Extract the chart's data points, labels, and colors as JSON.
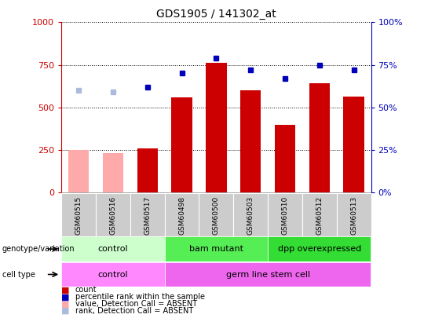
{
  "title": "GDS1905 / 141302_at",
  "samples": [
    "GSM60515",
    "GSM60516",
    "GSM60517",
    "GSM60498",
    "GSM60500",
    "GSM60503",
    "GSM60510",
    "GSM60512",
    "GSM60513"
  ],
  "count_values": [
    250,
    230,
    260,
    560,
    760,
    600,
    395,
    640,
    565
  ],
  "count_absent": [
    true,
    true,
    false,
    false,
    false,
    false,
    false,
    false,
    false
  ],
  "rank_values": [
    60,
    59,
    62,
    70,
    79,
    72,
    67,
    75,
    72
  ],
  "rank_absent": [
    true,
    true,
    false,
    false,
    false,
    false,
    false,
    false,
    false
  ],
  "ylim_left": [
    0,
    1000
  ],
  "ylim_right": [
    0,
    100
  ],
  "yticks_left": [
    0,
    250,
    500,
    750,
    1000
  ],
  "yticks_right": [
    0,
    25,
    50,
    75,
    100
  ],
  "genotype_groups": [
    {
      "label": "control",
      "start": 0,
      "end": 3,
      "color": "#ccffcc"
    },
    {
      "label": "bam mutant",
      "start": 3,
      "end": 6,
      "color": "#55ee55"
    },
    {
      "label": "dpp overexpressed",
      "start": 6,
      "end": 9,
      "color": "#33dd33"
    }
  ],
  "cell_type_groups": [
    {
      "label": "control",
      "start": 0,
      "end": 3,
      "color": "#ff88ff"
    },
    {
      "label": "germ line stem cell",
      "start": 3,
      "end": 9,
      "color": "#ee66ee"
    }
  ],
  "bar_color_present": "#cc0000",
  "bar_color_absent": "#ffaaaa",
  "dot_color_present": "#0000bb",
  "dot_color_absent": "#aabbdd",
  "left_axis_color": "#cc0000",
  "right_axis_color": "#0000bb",
  "xtick_bg": "#cccccc",
  "legend_items": [
    {
      "color": "#cc0000",
      "label": "count"
    },
    {
      "color": "#0000bb",
      "label": "percentile rank within the sample"
    },
    {
      "color": "#ffaaaa",
      "label": "value, Detection Call = ABSENT"
    },
    {
      "color": "#aabbdd",
      "label": "rank, Detection Call = ABSENT"
    }
  ]
}
